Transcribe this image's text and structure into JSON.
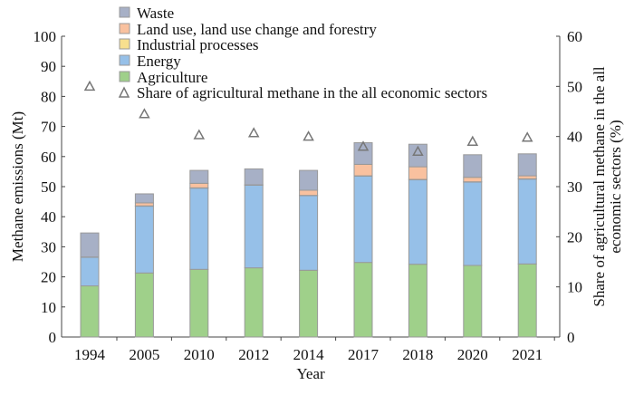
{
  "chart_data": {
    "type": "bar",
    "stacked": true,
    "categories": [
      "1994",
      "2005",
      "2010",
      "2012",
      "2014",
      "2017",
      "2018",
      "2020",
      "2021"
    ],
    "xlabel": "Year",
    "ylabel": "Methane emissions (Mt)",
    "ylabel_right": "Share of agricultural methane in the all economic sectors (%)",
    "ylabel_right_lines": [
      "Share of agricultural methane in the all",
      "economic sectors (%)"
    ],
    "ylim": [
      0,
      100
    ],
    "ylim_right": [
      0,
      60
    ],
    "yticks": [
      0,
      10,
      20,
      30,
      40,
      50,
      60,
      70,
      80,
      90,
      100
    ],
    "yticks_right": [
      0,
      10,
      20,
      30,
      40,
      50,
      60
    ],
    "series": [
      {
        "name": "Agriculture",
        "color": "#9fd08a",
        "values": [
          17,
          21.3,
          22.5,
          23,
          22.2,
          24.8,
          24.2,
          23.8,
          24.3
        ]
      },
      {
        "name": "Energy",
        "color": "#96c0e8",
        "values": [
          9.5,
          22.2,
          27,
          27.5,
          24.8,
          28.7,
          28.1,
          27.7,
          28.2
        ]
      },
      {
        "name": "Industrial processes",
        "color": "#f8e08e",
        "values": [
          0.1,
          0.1,
          0.1,
          0.1,
          0.1,
          0.1,
          0.1,
          0.1,
          0.1
        ]
      },
      {
        "name": "Land use, land use change and forestry",
        "color": "#f9c19f",
        "values": [
          0,
          1,
          1.5,
          0,
          1.7,
          3.8,
          4.2,
          1.5,
          1
        ]
      },
      {
        "name": "Waste",
        "color": "#a7b0c6",
        "values": [
          8,
          3,
          4.3,
          5.3,
          6.6,
          7.2,
          7.5,
          7.5,
          7.3
        ]
      }
    ],
    "share_series": {
      "name": "Share of agricultural methane in the all economic sectors",
      "axis": "right",
      "marker": "triangle",
      "values": [
        50,
        44.5,
        40.3,
        40.7,
        40,
        38,
        37,
        39,
        39.8
      ]
    },
    "legend": [
      "Waste",
      "Land use, land use change and forestry",
      "Industrial processes",
      "Energy",
      "Agriculture",
      "Share of agricultural methane in the all economic sectors"
    ],
    "legend_position": "top-left"
  }
}
